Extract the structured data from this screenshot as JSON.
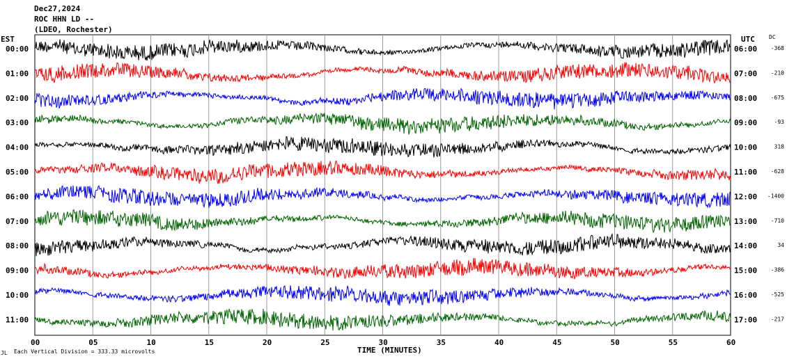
{
  "chart_data": {
    "type": "line",
    "title_lines": [
      "Dec27,2024",
      "ROC HHN LD --",
      "(LDEO, Rochester)"
    ],
    "left_axis_label": "EST",
    "right_axis_label": "UTC",
    "dc_label": "DC",
    "xlabel": "TIME (MINUTES)",
    "xlim": [
      0,
      60
    ],
    "x_ticks": [
      "00",
      "05",
      "10",
      "15",
      "20",
      "25",
      "30",
      "35",
      "40",
      "45",
      "50",
      "55",
      "60"
    ],
    "footer": "Each Vertical Division = 333.33 microvolts",
    "footer_mark": "JL",
    "grid": "vertical every 5 minutes",
    "trace_colors": [
      "#000000",
      "#ff0000",
      "#0000ff",
      "#006400"
    ],
    "rows": [
      {
        "est": "00:00",
        "utc": "06:00",
        "dc": "-368",
        "color": "#000000"
      },
      {
        "est": "01:00",
        "utc": "07:00",
        "dc": "-210",
        "color": "#ff0000"
      },
      {
        "est": "02:00",
        "utc": "08:00",
        "dc": "-675",
        "color": "#0000ff"
      },
      {
        "est": "03:00",
        "utc": "09:00",
        "dc": "-93",
        "color": "#006400"
      },
      {
        "est": "04:00",
        "utc": "10:00",
        "dc": "318",
        "color": "#000000"
      },
      {
        "est": "05:00",
        "utc": "11:00",
        "dc": "-628",
        "color": "#ff0000"
      },
      {
        "est": "06:00",
        "utc": "12:00",
        "dc": "-1400",
        "color": "#0000ff"
      },
      {
        "est": "07:00",
        "utc": "13:00",
        "dc": "-710",
        "color": "#006400"
      },
      {
        "est": "08:00",
        "utc": "14:00",
        "dc": "34",
        "color": "#000000"
      },
      {
        "est": "09:00",
        "utc": "15:00",
        "dc": "-386",
        "color": "#ff0000"
      },
      {
        "est": "10:00",
        "utc": "16:00",
        "dc": "-525",
        "color": "#0000ff"
      },
      {
        "est": "11:00",
        "utc": "17:00",
        "dc": "-217",
        "color": "#006400"
      }
    ]
  }
}
